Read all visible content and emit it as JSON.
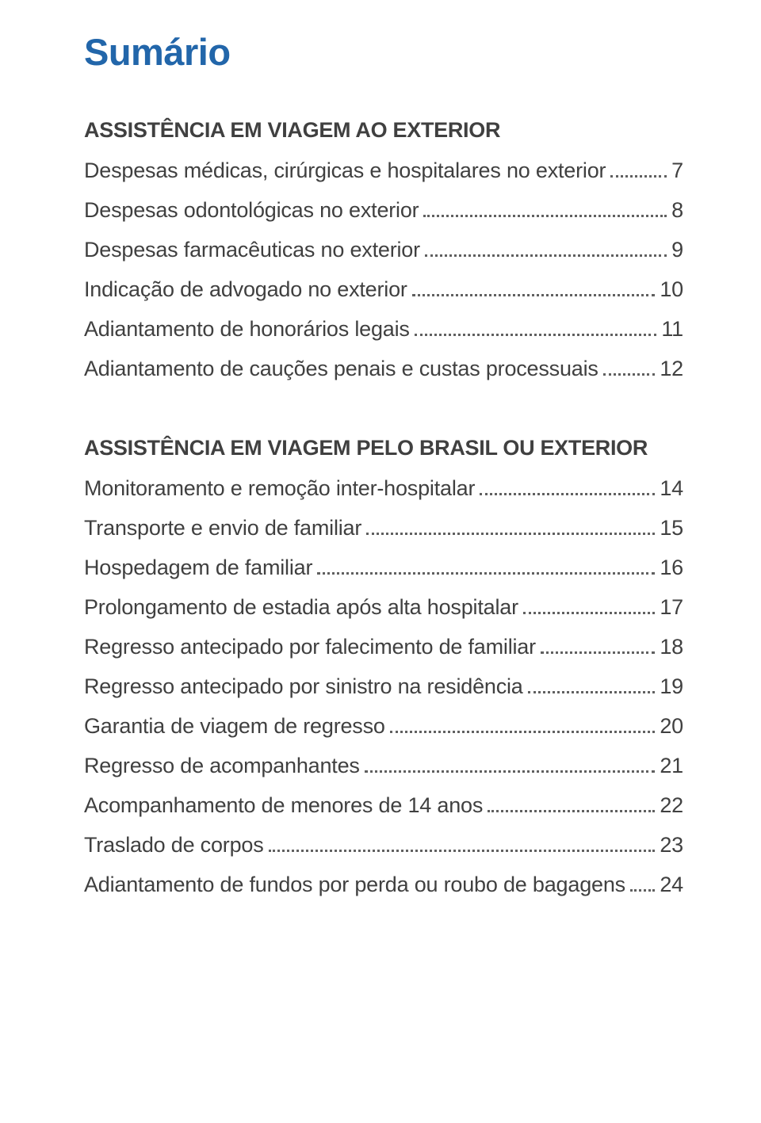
{
  "title": "Sumário",
  "sections": [
    {
      "heading": "ASSISTÊNCIA EM VIAGEM AO EXTERIOR",
      "items": [
        {
          "label": "Despesas médicas, cirúrgicas e hospitalares no exterior",
          "page": "7"
        },
        {
          "label": "Despesas odontológicas no exterior",
          "page": "8"
        },
        {
          "label": "Despesas farmacêuticas no exterior",
          "page": "9"
        },
        {
          "label": "Indicação de advogado no exterior",
          "page": "10"
        },
        {
          "label": "Adiantamento de honorários legais",
          "page": "11"
        },
        {
          "label": "Adiantamento de cauções penais e custas processuais",
          "page": "12"
        }
      ]
    },
    {
      "heading": "ASSISTÊNCIA EM VIAGEM PELO BRASIL OU EXTERIOR",
      "items": [
        {
          "label": "Monitoramento e remoção inter-hospitalar",
          "page": "14"
        },
        {
          "label": "Transporte e envio de familiar",
          "page": "15"
        },
        {
          "label": "Hospedagem de familiar",
          "page": "16"
        },
        {
          "label": "Prolongamento de estadia após alta hospitalar",
          "page": "17"
        },
        {
          "label": "Regresso antecipado por falecimento de familiar",
          "page": "18"
        },
        {
          "label": "Regresso antecipado por sinistro na residência",
          "page": "19"
        },
        {
          "label": "Garantia de viagem de regresso",
          "page": "20"
        },
        {
          "label": "Regresso de acompanhantes",
          "page": "21"
        },
        {
          "label": "Acompanhamento de menores de 14 anos",
          "page": "22"
        },
        {
          "label": "Traslado de corpos",
          "page": "23"
        },
        {
          "label": "Adiantamento de fundos por perda ou roubo de bagagens",
          "page": "24"
        }
      ]
    }
  ],
  "colors": {
    "title": "#2266aa",
    "text": "#404040",
    "dots": "#606060",
    "background": "#ffffff"
  },
  "typography": {
    "title_fontsize": 47,
    "heading_fontsize": 27,
    "row_fontsize": 27,
    "font_family": "Arial"
  }
}
